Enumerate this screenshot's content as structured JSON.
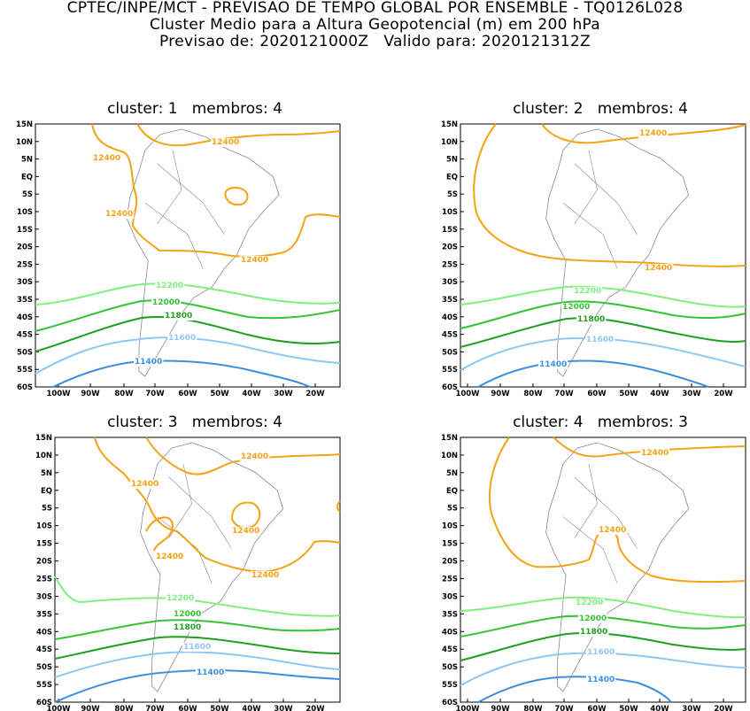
{
  "header": {
    "line1": "CPTEC/INPE/MCT - PREVISAO DE TEMPO GLOBAL POR ENSEMBLE - TQ0126L028",
    "line2": "Cluster Medio para a Altura Geopotencial (m) em 200 hPa",
    "line3": "Previsao de: 2020121000Z   Valido para: 2020121312Z"
  },
  "axes": {
    "lat_labels": [
      "15N",
      "10N",
      "5N",
      "EQ",
      "5S",
      "10S",
      "15S",
      "20S",
      "25S",
      "30S",
      "35S",
      "40S",
      "45S",
      "50S",
      "55S",
      "60S"
    ],
    "lon_labels": [
      "100W",
      "90W",
      "80W",
      "70W",
      "60W",
      "50W",
      "40W",
      "30W",
      "20W"
    ]
  },
  "colors": {
    "c12400": "#f5a214",
    "c12200": "#7ef07e",
    "c12000": "#33c433",
    "c11800": "#1f9e1f",
    "c11600": "#8fc8f5",
    "c11400": "#3c8fe0",
    "coast": "#8a8a8a",
    "frame": "#000000"
  },
  "panels": [
    {
      "title": "cluster: 1   membros: 4",
      "labels": {
        "l12400a": "12400",
        "l12400b": "12400",
        "l12400c": "12400",
        "l12400d": "12400",
        "l12200": "12200",
        "l12000": "12000",
        "l11800": "11800",
        "l11600": "11600",
        "l11400": "11400"
      }
    },
    {
      "title": "cluster: 2   membros: 4",
      "labels": {
        "l12400a": "12400",
        "l12400b": "12400",
        "l12200": "12200",
        "l12000": "12000",
        "l11800": "11800",
        "l11600": "11600",
        "l11400": "11400"
      }
    },
    {
      "title": "cluster: 3   membros: 4",
      "labels": {
        "l12400a": "12400",
        "l12400b": "12400",
        "l12400c": "12400",
        "l12400d": "12400",
        "l12400e": "12400",
        "l12200": "12200",
        "l12000": "12000",
        "l11800": "11800",
        "l11600": "11600",
        "l11400": "11400"
      }
    },
    {
      "title": "cluster: 4   membros: 3",
      "labels": {
        "l12400a": "12400",
        "l12400b": "12400",
        "l12200": "12200",
        "l12000": "12000",
        "l11800": "11800",
        "l11600": "11600",
        "l11400": "11400"
      }
    }
  ]
}
